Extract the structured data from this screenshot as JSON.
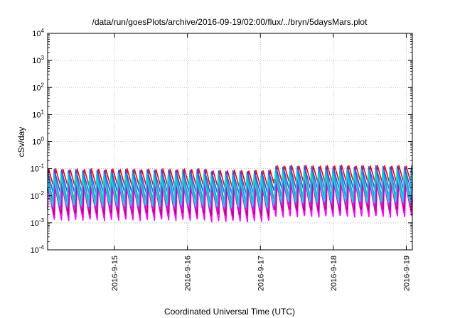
{
  "chart_data": {
    "type": "line",
    "title": "/data/run/goesPlots/archive/2016-09-19/02:00/flux/../bryn/5daysMars.plot",
    "xlabel": "Coordinated Universal Time (UTC)",
    "ylabel": "cSv/day",
    "yscale": "log",
    "ylim": [
      0.0001,
      10000
    ],
    "yticks": [
      {
        "base": "10",
        "exp": "-4"
      },
      {
        "base": "10",
        "exp": "-3"
      },
      {
        "base": "10",
        "exp": "-2"
      },
      {
        "base": "10",
        "exp": "-1"
      },
      {
        "base": "10",
        "exp": "0"
      },
      {
        "base": "10",
        "exp": "1"
      },
      {
        "base": "10",
        "exp": "2"
      },
      {
        "base": "10",
        "exp": "3"
      },
      {
        "base": "10",
        "exp": "4"
      }
    ],
    "xlim": [
      "2016-09-14 02:00",
      "2016-09-19 02:00"
    ],
    "xticks": [
      "2016-9-15",
      "2016-9-16",
      "2016-9-17",
      "2016-9-18",
      "2016-9-19"
    ],
    "grid": true,
    "legend": "none",
    "series": [
      {
        "color": "#ff0000",
        "peak": 0.1,
        "trough": 0.015
      },
      {
        "color": "#ff00ff",
        "peak": 0.02,
        "trough": 0.0012
      },
      {
        "color": "#a8126c",
        "peak": 0.03,
        "trough": 0.002
      },
      {
        "color": "#7a1fd6",
        "peak": 0.06,
        "trough": 0.004
      },
      {
        "color": "#d11ee0",
        "peak": 0.04,
        "trough": 0.003
      },
      {
        "color": "#3050ff",
        "peak": 0.095,
        "trough": 0.012
      },
      {
        "color": "#20b0b0",
        "peak": 0.07,
        "trough": 0.006
      },
      {
        "color": "#00e0e0",
        "peak": 0.05,
        "trough": 0.004
      }
    ]
  }
}
